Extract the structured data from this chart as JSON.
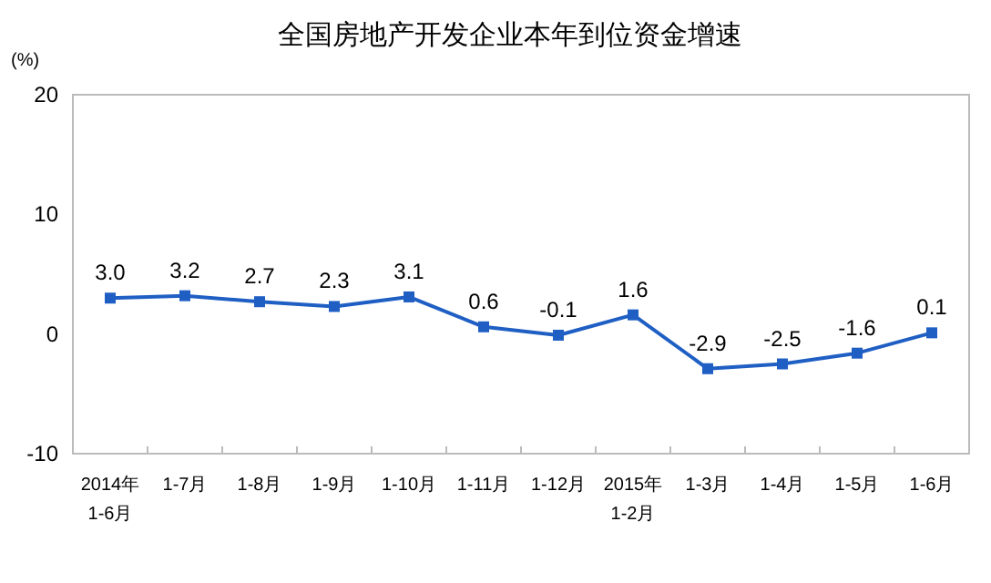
{
  "chart_data": {
    "type": "line",
    "title": "全国房地产开发企业本年到位资金增速",
    "ylabel": "(%)",
    "categories": [
      "2014年\n1-6月",
      "1-7月",
      "1-8月",
      "1-9月",
      "1-10月",
      "1-11月",
      "1-12月",
      "2015年\n1-2月",
      "1-3月",
      "1-4月",
      "1-5月",
      "1-6月"
    ],
    "series": [
      {
        "color": "#1f5fc4",
        "values": [
          3.0,
          3.2,
          2.7,
          2.3,
          3.1,
          0.6,
          -0.1,
          1.6,
          -2.9,
          -2.5,
          -1.6,
          0.1
        ],
        "value_labels": [
          "3.0",
          "3.2",
          "2.7",
          "2.3",
          "3.1",
          "0.6",
          "-0.1",
          "1.6",
          "-2.9",
          "-2.5",
          "-1.6",
          "0.1"
        ]
      }
    ],
    "ylim": [
      -10,
      20
    ],
    "yticks": [
      -10,
      0,
      10,
      20
    ],
    "marker": "square",
    "grid": false
  }
}
